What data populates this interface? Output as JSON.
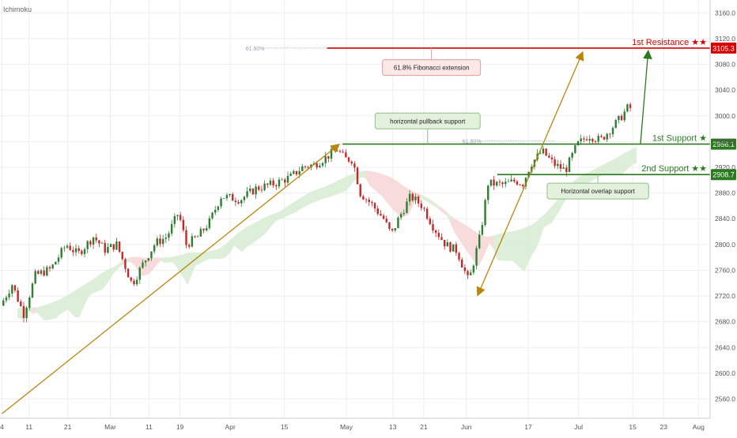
{
  "indicator_label": "Ichimoku",
  "chart_data": {
    "type": "candlestick",
    "ylim": [
      2530,
      3180
    ],
    "y_ticks": [
      3160,
      3120,
      3080,
      3040,
      3000,
      2960,
      2920,
      2880,
      2840,
      2800,
      2760,
      2720,
      2680,
      2640,
      2600,
      2560
    ],
    "y_tick_labels": [
      "3160.0",
      "3120.0",
      "3080.0",
      "3040.0",
      "3000.0",
      "2960.0",
      "2920.0",
      "2880.0",
      "2840.0",
      "2800.0",
      "2760.0",
      "2720.0",
      "2680.0",
      "2640.0",
      "2600.0",
      "2560.0"
    ],
    "x_ticks": [
      {
        "day": 4,
        "label": "4"
      },
      {
        "day": 11,
        "label": "11"
      },
      {
        "day": 21,
        "label": "21"
      },
      {
        "day": 32,
        "label": "Mar"
      },
      {
        "day": 42,
        "label": "11"
      },
      {
        "day": 50,
        "label": "19"
      },
      {
        "day": 63,
        "label": "Apr"
      },
      {
        "day": 77,
        "label": "15"
      },
      {
        "day": 93,
        "label": "May"
      },
      {
        "day": 105,
        "label": "13"
      },
      {
        "day": 113,
        "label": "21"
      },
      {
        "day": 124,
        "label": "Jun"
      },
      {
        "day": 140,
        "label": "17"
      },
      {
        "day": 153,
        "label": "Jul"
      },
      {
        "day": 167,
        "label": "15"
      },
      {
        "day": 175,
        "label": "23"
      },
      {
        "day": 184,
        "label": "Aug"
      }
    ],
    "x_range": [
      3.5,
      187
    ],
    "price_path": [
      [
        4,
        2705
      ],
      [
        7,
        2738
      ],
      [
        10,
        2692
      ],
      [
        13,
        2752
      ],
      [
        17,
        2762
      ],
      [
        21,
        2800
      ],
      [
        24,
        2785
      ],
      [
        28,
        2812
      ],
      [
        31,
        2792
      ],
      [
        34,
        2800
      ],
      [
        36,
        2770
      ],
      [
        38,
        2738
      ],
      [
        41,
        2772
      ],
      [
        44,
        2802
      ],
      [
        47,
        2812
      ],
      [
        50,
        2850
      ],
      [
        52,
        2800
      ],
      [
        55,
        2812
      ],
      [
        58,
        2835
      ],
      [
        61,
        2875
      ],
      [
        66,
        2870
      ],
      [
        70,
        2887
      ],
      [
        75,
        2895
      ],
      [
        79,
        2905
      ],
      [
        82,
        2920
      ],
      [
        85,
        2924
      ],
      [
        88,
        2935
      ],
      [
        91,
        2948
      ],
      [
        93,
        2933
      ],
      [
        95,
        2932
      ],
      [
        97,
        2880
      ],
      [
        100,
        2862
      ],
      [
        103,
        2840
      ],
      [
        105,
        2815
      ],
      [
        107,
        2842
      ],
      [
        110,
        2875
      ],
      [
        113,
        2860
      ],
      [
        116,
        2826
      ],
      [
        119,
        2800
      ],
      [
        122,
        2790
      ],
      [
        125,
        2742
      ],
      [
        128,
        2815
      ],
      [
        130,
        2895
      ],
      [
        134,
        2893
      ],
      [
        137,
        2899
      ],
      [
        139,
        2895
      ],
      [
        141,
        2925
      ],
      [
        144,
        2945
      ],
      [
        147,
        2925
      ],
      [
        150,
        2915
      ],
      [
        153,
        2955
      ],
      [
        156,
        2970
      ],
      [
        159,
        2962
      ],
      [
        161,
        2975
      ],
      [
        164,
        2995
      ],
      [
        166,
        3012
      ]
    ],
    "levels": [
      {
        "name": "1st Resistance ★★",
        "value": 3105.3,
        "label": "3105.3",
        "color": "#d80000",
        "x_start": 88
      },
      {
        "name": "1st Support ★",
        "value": 2956.1,
        "label": "2956.1",
        "color": "#2b7a1f",
        "x_start": 92
      },
      {
        "name": "2nd Support ★★",
        "value": 2908.7,
        "label": "2908.7",
        "color": "#2b7a1f",
        "x_start": 132
      }
    ],
    "fib_markers": [
      {
        "label": "61.80%",
        "value": 3105.3,
        "x_label_day": 67,
        "x_end_day": 88
      },
      {
        "label": "61.80%",
        "value": 2961,
        "x_label_day": 123,
        "x_end_day": 147
      }
    ],
    "trend_arrows": [
      {
        "from": [
          4,
          2537
        ],
        "to": [
          91,
          2955
        ],
        "color": "#b8860b"
      },
      {
        "from": [
          127,
          2722
        ],
        "to": [
          154,
          3098
        ],
        "color": "#b8860b"
      },
      {
        "from": [
          169,
          2956
        ],
        "to": [
          171,
          3100
        ],
        "color": "#2b7a1f"
      }
    ],
    "annotations": [
      {
        "text": "61.8% Fibonacci extension",
        "kind": "red",
        "day": 115,
        "value": 3075
      },
      {
        "text": "horizontal pullback support",
        "kind": "green",
        "day": 114,
        "value": 2992
      },
      {
        "text": "Horizontal overlap support",
        "kind": "green",
        "day": 158,
        "value": 2883
      }
    ],
    "colors": {
      "up": "#2e7d32",
      "down": "#c62828",
      "cloud_bull": "#d9ecd5",
      "cloud_bear": "#f7d7d7",
      "grid": "#eeeeee",
      "axis_text": "#555555"
    }
  }
}
